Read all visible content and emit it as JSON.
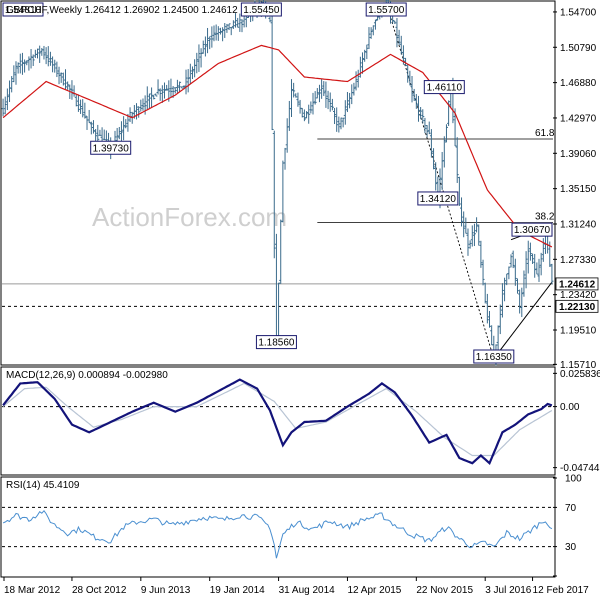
{
  "colors": {
    "bar": "#3a6b8c",
    "ma": "#d11414",
    "macd": "#13137a",
    "signal": "#b8c4d4",
    "rsi": "#4a8fd0",
    "grid": "#000000",
    "box": "#1a1a6e",
    "watermark": "#cfcfcf"
  },
  "chart_data": [
    {
      "type": "ohlc",
      "title": "GBPCHF,Weekly  1.26412 1.26902 1.24500 1.24612",
      "watermark": "ActionForex.com",
      "xlabels": [
        "18 Mar 2012",
        "28 Oct 2012",
        "9 Jun 2013",
        "19 Jan 2014",
        "31 Aug 2014",
        "12 Apr 2015",
        "22 Nov 2015",
        "3 Jul 2016",
        "12 Feb 2017"
      ],
      "ylim": [
        1.1575,
        1.558
      ],
      "y_ticks": [
        "1.54700",
        "1.50790",
        "1.46880",
        "1.42970",
        "1.39060",
        "1.35150",
        "1.31240",
        "1.27330",
        "1.23420",
        "1.19510",
        "1.15710"
      ],
      "price_key_points": [
        {
          "i": 0,
          "v": 1.44
        },
        {
          "i": 6,
          "v": 1.485
        },
        {
          "i": 18,
          "v": 1.505
        },
        {
          "i": 30,
          "v": 1.465
        },
        {
          "i": 42,
          "v": 1.415
        },
        {
          "i": 50,
          "v": 1.3973
        },
        {
          "i": 60,
          "v": 1.435
        },
        {
          "i": 72,
          "v": 1.46
        },
        {
          "i": 84,
          "v": 1.465
        },
        {
          "i": 96,
          "v": 1.52
        },
        {
          "i": 110,
          "v": 1.535
        },
        {
          "i": 120,
          "v": 1.5545
        },
        {
          "i": 124,
          "v": 1.535
        },
        {
          "i": 126,
          "v": 1.29
        },
        {
          "i": 127,
          "v": 1.185
        },
        {
          "i": 130,
          "v": 1.38
        },
        {
          "i": 134,
          "v": 1.46
        },
        {
          "i": 140,
          "v": 1.43
        },
        {
          "i": 148,
          "v": 1.465
        },
        {
          "i": 156,
          "v": 1.42
        },
        {
          "i": 164,
          "v": 1.47
        },
        {
          "i": 172,
          "v": 1.535
        },
        {
          "i": 178,
          "v": 1.557
        },
        {
          "i": 182,
          "v": 1.53
        },
        {
          "i": 190,
          "v": 1.455
        },
        {
          "i": 198,
          "v": 1.41
        },
        {
          "i": 202,
          "v": 1.3412
        },
        {
          "i": 208,
          "v": 1.465
        },
        {
          "i": 212,
          "v": 1.33
        },
        {
          "i": 216,
          "v": 1.29
        },
        {
          "i": 220,
          "v": 1.31
        },
        {
          "i": 224,
          "v": 1.225
        },
        {
          "i": 228,
          "v": 1.1635
        },
        {
          "i": 232,
          "v": 1.235
        },
        {
          "i": 236,
          "v": 1.28
        },
        {
          "i": 240,
          "v": 1.22
        },
        {
          "i": 244,
          "v": 1.285
        },
        {
          "i": 248,
          "v": 1.255
        },
        {
          "i": 252,
          "v": 1.302
        },
        {
          "i": 255,
          "v": 1.25
        }
      ],
      "annotations": [
        {
          "text": "1.54810",
          "v": 1.5481,
          "at_i": 0
        },
        {
          "text": "1.55450",
          "v": 1.5545,
          "at_i": 120
        },
        {
          "text": "1.55700",
          "v": 1.557,
          "at_i": 178
        },
        {
          "text": "1.39730",
          "v": 1.3973,
          "at_i": 50
        },
        {
          "text": "1.46110",
          "v": 1.4611,
          "at_i": 205
        },
        {
          "text": "1.34120",
          "v": 1.3412,
          "at_i": 202
        },
        {
          "text": "1.30670",
          "v": 1.3067,
          "at_i": 248
        },
        {
          "text": "1.18560",
          "v": 1.1856,
          "at_i": 127
        },
        {
          "text": "1.16350",
          "v": 1.1635,
          "at_i": 228
        }
      ],
      "fib_levels": [
        {
          "label": "61.8",
          "v": 1.4064
        },
        {
          "label": "38.2",
          "v": 1.3139
        }
      ],
      "horizontal_levels": [
        {
          "v": 1.2213,
          "label": "1.22130",
          "style": "dashed"
        },
        {
          "v": 1.2461,
          "label": "1.24612",
          "style": "solid-gray"
        }
      ],
      "ma_key_points": [
        {
          "i": 0,
          "v": 1.43
        },
        {
          "i": 20,
          "v": 1.47
        },
        {
          "i": 40,
          "v": 1.45
        },
        {
          "i": 60,
          "v": 1.43
        },
        {
          "i": 80,
          "v": 1.455
        },
        {
          "i": 100,
          "v": 1.49
        },
        {
          "i": 120,
          "v": 1.51
        },
        {
          "i": 128,
          "v": 1.505
        },
        {
          "i": 140,
          "v": 1.475
        },
        {
          "i": 160,
          "v": 1.47
        },
        {
          "i": 180,
          "v": 1.5
        },
        {
          "i": 195,
          "v": 1.48
        },
        {
          "i": 210,
          "v": 1.435
        },
        {
          "i": 225,
          "v": 1.35
        },
        {
          "i": 240,
          "v": 1.305
        },
        {
          "i": 255,
          "v": 1.287
        }
      ]
    },
    {
      "type": "line",
      "title": "MACD(12,26,9) 0.000894 -0.002980",
      "ylim": [
        -0.0524,
        0.03
      ],
      "y_ticks": [
        "0.025836",
        "0.00",
        "-0.047449"
      ],
      "macd_key_points": [
        {
          "i": 0,
          "v": 0.001
        },
        {
          "i": 8,
          "v": 0.018
        },
        {
          "i": 16,
          "v": 0.019
        },
        {
          "i": 24,
          "v": 0.006
        },
        {
          "i": 32,
          "v": -0.014
        },
        {
          "i": 40,
          "v": -0.02
        },
        {
          "i": 50,
          "v": -0.012
        },
        {
          "i": 60,
          "v": -0.004
        },
        {
          "i": 70,
          "v": 0.003
        },
        {
          "i": 80,
          "v": -0.004
        },
        {
          "i": 90,
          "v": 0.003
        },
        {
          "i": 100,
          "v": 0.012
        },
        {
          "i": 110,
          "v": 0.021
        },
        {
          "i": 118,
          "v": 0.014
        },
        {
          "i": 124,
          "v": -0.003
        },
        {
          "i": 130,
          "v": -0.03
        },
        {
          "i": 134,
          "v": -0.02
        },
        {
          "i": 140,
          "v": -0.012
        },
        {
          "i": 150,
          "v": -0.011
        },
        {
          "i": 160,
          "v": 0.0
        },
        {
          "i": 170,
          "v": 0.01
        },
        {
          "i": 176,
          "v": 0.018
        },
        {
          "i": 182,
          "v": 0.011
        },
        {
          "i": 190,
          "v": -0.007
        },
        {
          "i": 198,
          "v": -0.028
        },
        {
          "i": 206,
          "v": -0.022
        },
        {
          "i": 212,
          "v": -0.04
        },
        {
          "i": 218,
          "v": -0.044
        },
        {
          "i": 222,
          "v": -0.038
        },
        {
          "i": 226,
          "v": -0.044
        },
        {
          "i": 232,
          "v": -0.02
        },
        {
          "i": 238,
          "v": -0.014
        },
        {
          "i": 244,
          "v": -0.006
        },
        {
          "i": 250,
          "v": -0.002
        },
        {
          "i": 253,
          "v": 0.002
        },
        {
          "i": 255,
          "v": 0.0009
        }
      ],
      "signal_key_points": [
        {
          "i": 0,
          "v": 0.0
        },
        {
          "i": 10,
          "v": 0.014
        },
        {
          "i": 20,
          "v": 0.015
        },
        {
          "i": 30,
          "v": 0.0
        },
        {
          "i": 42,
          "v": -0.016
        },
        {
          "i": 55,
          "v": -0.01
        },
        {
          "i": 70,
          "v": 0.0
        },
        {
          "i": 90,
          "v": 0.0
        },
        {
          "i": 112,
          "v": 0.018
        },
        {
          "i": 126,
          "v": 0.004
        },
        {
          "i": 136,
          "v": -0.017
        },
        {
          "i": 150,
          "v": -0.012
        },
        {
          "i": 165,
          "v": 0.002
        },
        {
          "i": 178,
          "v": 0.014
        },
        {
          "i": 192,
          "v": -0.004
        },
        {
          "i": 205,
          "v": -0.024
        },
        {
          "i": 218,
          "v": -0.038
        },
        {
          "i": 228,
          "v": -0.038
        },
        {
          "i": 240,
          "v": -0.018
        },
        {
          "i": 255,
          "v": -0.003
        }
      ]
    },
    {
      "type": "line",
      "title": "RSI(14) 45.4109",
      "ylim": [
        0,
        100
      ],
      "y_ticks": [
        "100",
        "70",
        "30",
        "0"
      ],
      "levels": [
        70,
        30
      ],
      "rsi_key_points": [
        {
          "i": 0,
          "v": 55
        },
        {
          "i": 6,
          "v": 62
        },
        {
          "i": 12,
          "v": 58
        },
        {
          "i": 18,
          "v": 66
        },
        {
          "i": 24,
          "v": 52
        },
        {
          "i": 30,
          "v": 44
        },
        {
          "i": 36,
          "v": 48
        },
        {
          "i": 42,
          "v": 40
        },
        {
          "i": 50,
          "v": 36
        },
        {
          "i": 56,
          "v": 50
        },
        {
          "i": 62,
          "v": 55
        },
        {
          "i": 70,
          "v": 58
        },
        {
          "i": 78,
          "v": 52
        },
        {
          "i": 86,
          "v": 56
        },
        {
          "i": 94,
          "v": 60
        },
        {
          "i": 102,
          "v": 57
        },
        {
          "i": 110,
          "v": 62
        },
        {
          "i": 118,
          "v": 60
        },
        {
          "i": 124,
          "v": 50
        },
        {
          "i": 126,
          "v": 32
        },
        {
          "i": 127,
          "v": 18
        },
        {
          "i": 130,
          "v": 42
        },
        {
          "i": 136,
          "v": 55
        },
        {
          "i": 144,
          "v": 48
        },
        {
          "i": 152,
          "v": 56
        },
        {
          "i": 160,
          "v": 50
        },
        {
          "i": 168,
          "v": 58
        },
        {
          "i": 176,
          "v": 62
        },
        {
          "i": 182,
          "v": 52
        },
        {
          "i": 190,
          "v": 42
        },
        {
          "i": 198,
          "v": 36
        },
        {
          "i": 206,
          "v": 50
        },
        {
          "i": 212,
          "v": 38
        },
        {
          "i": 218,
          "v": 30
        },
        {
          "i": 224,
          "v": 34
        },
        {
          "i": 228,
          "v": 29
        },
        {
          "i": 234,
          "v": 44
        },
        {
          "i": 240,
          "v": 38
        },
        {
          "i": 246,
          "v": 48
        },
        {
          "i": 252,
          "v": 58
        },
        {
          "i": 255,
          "v": 45.4
        }
      ]
    }
  ]
}
